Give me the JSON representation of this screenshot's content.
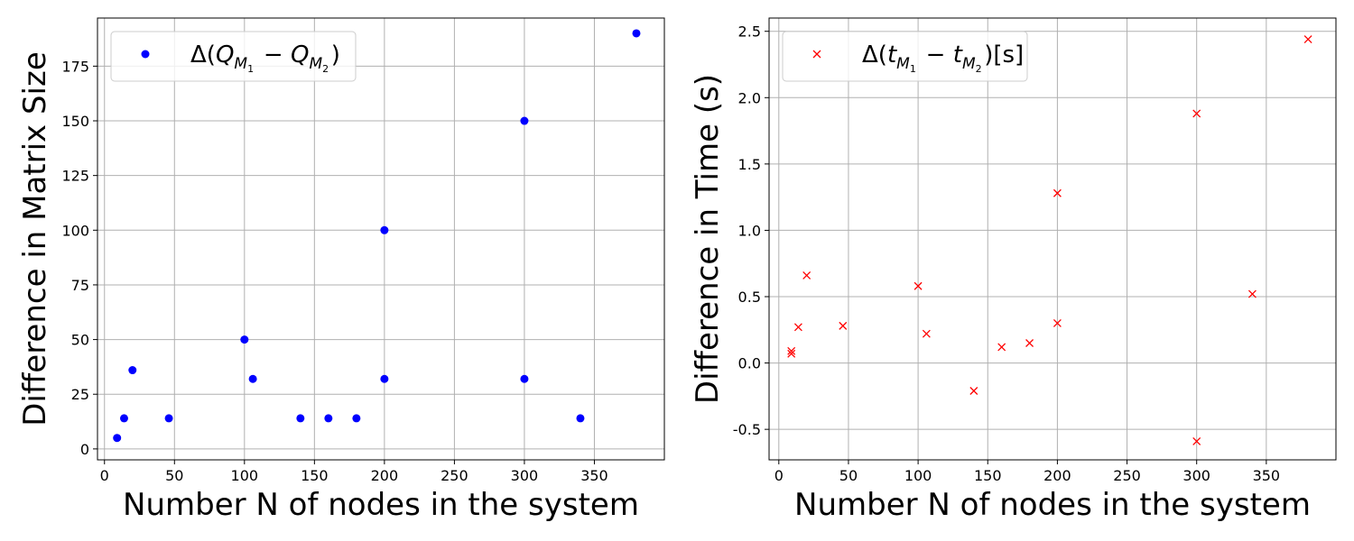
{
  "chart_data": [
    {
      "type": "scatter",
      "xlabel": "Number N of nodes in the system",
      "ylabel": "Difference in Matrix Size",
      "xlim": [
        -5,
        400
      ],
      "ylim": [
        -5,
        197
      ],
      "xticks": [
        0,
        50,
        100,
        150,
        200,
        250,
        300,
        350
      ],
      "yticks": [
        0,
        25,
        50,
        75,
        100,
        125,
        150,
        175
      ],
      "grid": true,
      "legend_position": "top-left",
      "series": [
        {
          "name": "Δ(Q_{M_1} − Q_{M_2})",
          "marker": "circle",
          "color": "#0000ff",
          "x": [
            9,
            14,
            20,
            46,
            100,
            106,
            140,
            160,
            180,
            200,
            200,
            300,
            300,
            340,
            380
          ],
          "y": [
            5,
            14,
            36,
            14,
            50,
            32,
            14,
            14,
            14,
            100,
            32,
            150,
            32,
            14,
            190
          ]
        }
      ]
    },
    {
      "type": "scatter",
      "xlabel": "Number N of nodes in the system",
      "ylabel": "Difference in Time (s)",
      "xlim": [
        -7,
        400
      ],
      "ylim": [
        -0.73,
        2.6
      ],
      "xticks": [
        0,
        50,
        100,
        150,
        200,
        250,
        300,
        350
      ],
      "yticks": [
        -0.5,
        0.0,
        0.5,
        1.0,
        1.5,
        2.0,
        2.5
      ],
      "grid": true,
      "legend_position": "top-left",
      "series": [
        {
          "name": "Δ(t_{M_1} − t_{M_2})[s]",
          "marker": "x",
          "color": "#ff0000",
          "x": [
            9,
            9,
            14,
            20,
            46,
            100,
            106,
            140,
            160,
            180,
            200,
            200,
            300,
            300,
            340,
            380
          ],
          "y": [
            0.07,
            0.09,
            0.27,
            0.66,
            0.28,
            0.58,
            0.22,
            -0.21,
            0.12,
            0.15,
            1.28,
            0.3,
            1.88,
            -0.59,
            0.52,
            2.44
          ]
        }
      ]
    }
  ]
}
